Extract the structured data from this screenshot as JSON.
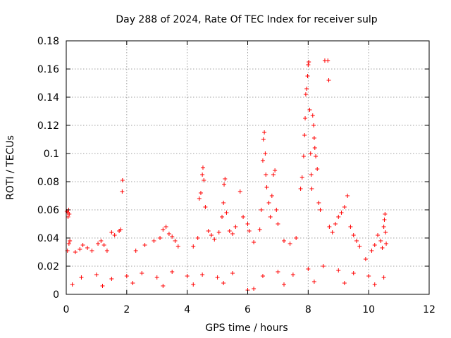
{
  "chart_data": {
    "type": "scatter",
    "title": "Day 288 of 2024, Rate Of TEC Index for receiver sulp",
    "xlabel": "GPS time / hours",
    "ylabel": "ROTI / TECUs",
    "xlim": [
      0,
      12
    ],
    "ylim": [
      0,
      0.18
    ],
    "x_ticks": [
      0,
      2,
      4,
      6,
      8,
      10,
      12
    ],
    "x_tick_labels": [
      "0",
      "2",
      "4",
      "6",
      "8",
      "10",
      "12"
    ],
    "y_ticks": [
      0,
      0.02,
      0.04,
      0.06,
      0.08,
      0.1,
      0.12,
      0.14,
      0.16,
      0.18
    ],
    "y_tick_labels": [
      "0",
      "0.02",
      "0.04",
      "0.06",
      "0.08",
      "0.1",
      "0.12",
      "0.14",
      "0.16",
      "0.18"
    ],
    "grid": true,
    "marker": "+",
    "series_color": "#ff0000",
    "series": [
      {
        "name": "ROTI",
        "points": [
          [
            0.02,
            0.059
          ],
          [
            0.05,
            0.058
          ],
          [
            0.08,
            0.06
          ],
          [
            0.1,
            0.057
          ],
          [
            0.06,
            0.055
          ],
          [
            0.09,
            0.036
          ],
          [
            0.04,
            0.031
          ],
          [
            0.12,
            0.038
          ],
          [
            0.3,
            0.03
          ],
          [
            0.45,
            0.032
          ],
          [
            0.55,
            0.035
          ],
          [
            0.7,
            0.033
          ],
          [
            0.85,
            0.031
          ],
          [
            1.05,
            0.036
          ],
          [
            1.15,
            0.038
          ],
          [
            1.25,
            0.035
          ],
          [
            1.35,
            0.031
          ],
          [
            1.5,
            0.044
          ],
          [
            1.6,
            0.042
          ],
          [
            1.75,
            0.045
          ],
          [
            1.85,
            0.073
          ],
          [
            1.86,
            0.081
          ],
          [
            1.8,
            0.046
          ],
          [
            2.3,
            0.031
          ],
          [
            2.6,
            0.035
          ],
          [
            2.9,
            0.038
          ],
          [
            3.1,
            0.04
          ],
          [
            3.2,
            0.046
          ],
          [
            3.3,
            0.048
          ],
          [
            3.4,
            0.043
          ],
          [
            3.5,
            0.041
          ],
          [
            3.6,
            0.038
          ],
          [
            3.7,
            0.034
          ],
          [
            4.2,
            0.034
          ],
          [
            4.35,
            0.04
          ],
          [
            4.4,
            0.068
          ],
          [
            4.45,
            0.072
          ],
          [
            4.5,
            0.085
          ],
          [
            4.52,
            0.09
          ],
          [
            4.55,
            0.081
          ],
          [
            4.6,
            0.062
          ],
          [
            4.7,
            0.045
          ],
          [
            4.8,
            0.042
          ],
          [
            4.9,
            0.039
          ],
          [
            5.05,
            0.044
          ],
          [
            5.15,
            0.055
          ],
          [
            5.2,
            0.065
          ],
          [
            5.22,
            0.078
          ],
          [
            5.25,
            0.082
          ],
          [
            5.3,
            0.058
          ],
          [
            5.4,
            0.045
          ],
          [
            5.5,
            0.043
          ],
          [
            5.6,
            0.048
          ],
          [
            5.75,
            0.073
          ],
          [
            5.85,
            0.055
          ],
          [
            6.0,
            0.05
          ],
          [
            6.05,
            0.045
          ],
          [
            6.2,
            0.037
          ],
          [
            6.4,
            0.046
          ],
          [
            6.45,
            0.06
          ],
          [
            6.5,
            0.095
          ],
          [
            6.52,
            0.11
          ],
          [
            6.55,
            0.115
          ],
          [
            6.58,
            0.1
          ],
          [
            6.6,
            0.085
          ],
          [
            6.63,
            0.076
          ],
          [
            6.7,
            0.065
          ],
          [
            6.75,
            0.055
          ],
          [
            6.8,
            0.07
          ],
          [
            6.85,
            0.085
          ],
          [
            6.9,
            0.088
          ],
          [
            6.95,
            0.06
          ],
          [
            7.0,
            0.05
          ],
          [
            7.2,
            0.038
          ],
          [
            7.4,
            0.036
          ],
          [
            7.6,
            0.04
          ],
          [
            7.75,
            0.075
          ],
          [
            7.8,
            0.083
          ],
          [
            7.85,
            0.098
          ],
          [
            7.88,
            0.113
          ],
          [
            7.9,
            0.125
          ],
          [
            7.92,
            0.142
          ],
          [
            7.95,
            0.146
          ],
          [
            7.98,
            0.155
          ],
          [
            8.0,
            0.163
          ],
          [
            8.02,
            0.165
          ],
          [
            8.05,
            0.131
          ],
          [
            8.08,
            0.1
          ],
          [
            8.1,
            0.085
          ],
          [
            8.12,
            0.075
          ],
          [
            8.15,
            0.127
          ],
          [
            8.18,
            0.12
          ],
          [
            8.2,
            0.111
          ],
          [
            8.22,
            0.104
          ],
          [
            8.25,
            0.098
          ],
          [
            8.3,
            0.089
          ],
          [
            8.35,
            0.065
          ],
          [
            8.4,
            0.06
          ],
          [
            8.55,
            0.166
          ],
          [
            8.65,
            0.166
          ],
          [
            8.68,
            0.152
          ],
          [
            8.7,
            0.048
          ],
          [
            8.8,
            0.044
          ],
          [
            8.9,
            0.05
          ],
          [
            9.0,
            0.055
          ],
          [
            9.1,
            0.058
          ],
          [
            9.2,
            0.062
          ],
          [
            9.3,
            0.07
          ],
          [
            9.4,
            0.048
          ],
          [
            9.5,
            0.042
          ],
          [
            9.6,
            0.038
          ],
          [
            9.7,
            0.034
          ],
          [
            9.9,
            0.025
          ],
          [
            10.1,
            0.031
          ],
          [
            10.2,
            0.035
          ],
          [
            10.3,
            0.042
          ],
          [
            10.4,
            0.038
          ],
          [
            10.45,
            0.033
          ],
          [
            10.5,
            0.048
          ],
          [
            10.52,
            0.053
          ],
          [
            10.54,
            0.057
          ],
          [
            10.56,
            0.044
          ],
          [
            10.58,
            0.036
          ],
          [
            0.5,
            0.012
          ],
          [
            1.0,
            0.014
          ],
          [
            1.5,
            0.011
          ],
          [
            2.0,
            0.013
          ],
          [
            2.5,
            0.015
          ],
          [
            3.0,
            0.012
          ],
          [
            3.5,
            0.016
          ],
          [
            4.0,
            0.013
          ],
          [
            4.5,
            0.014
          ],
          [
            5.0,
            0.012
          ],
          [
            5.5,
            0.015
          ],
          [
            6.0,
            0.003
          ],
          [
            6.5,
            0.013
          ],
          [
            7.0,
            0.016
          ],
          [
            7.5,
            0.014
          ],
          [
            8.0,
            0.018
          ],
          [
            8.5,
            0.02
          ],
          [
            9.0,
            0.017
          ],
          [
            9.5,
            0.015
          ],
          [
            10.0,
            0.013
          ],
          [
            10.5,
            0.012
          ],
          [
            0.2,
            0.007
          ],
          [
            1.2,
            0.006
          ],
          [
            2.2,
            0.008
          ],
          [
            3.2,
            0.006
          ],
          [
            4.2,
            0.007
          ],
          [
            5.2,
            0.008
          ],
          [
            6.2,
            0.004
          ],
          [
            7.2,
            0.007
          ],
          [
            8.2,
            0.009
          ],
          [
            9.2,
            0.008
          ],
          [
            10.2,
            0.007
          ]
        ]
      }
    ]
  }
}
